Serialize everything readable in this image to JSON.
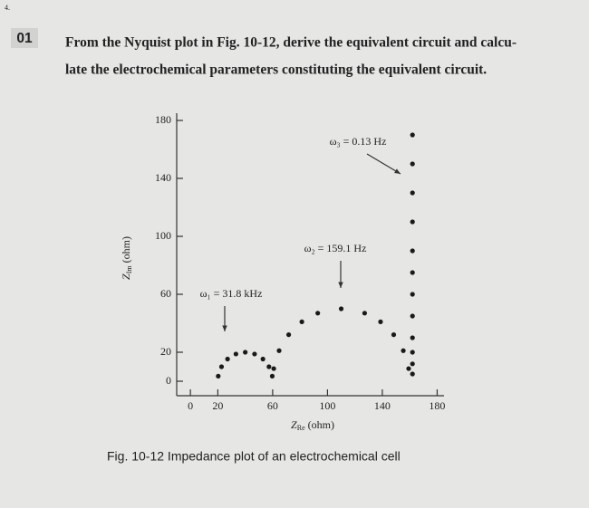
{
  "page_mark": "4.",
  "problem": {
    "number": "01",
    "lines": [
      "From the Nyquist plot in Fig. 10-12, derive the equivalent circuit and calcu-",
      "late the electrochemical parameters constituting the equivalent circuit."
    ]
  },
  "chart_data": {
    "type": "scatter",
    "x_label": {
      "symbol": "Z",
      "subscript": "Re",
      "unit": "(ohm)"
    },
    "y_label": {
      "symbol": "Z",
      "subscript": "Im",
      "unit": "(ohm)"
    },
    "xlim": [
      -10,
      185
    ],
    "ylim": [
      -10,
      185
    ],
    "xticks": [
      0,
      20,
      60,
      100,
      140,
      180
    ],
    "yticks": [
      0,
      20,
      60,
      100,
      140,
      180
    ],
    "color": "#1a1a1a",
    "x": [
      20.3,
      22.7,
      27.1,
      33.2,
      40,
      46.8,
      52.9,
      57.3,
      59.7,
      60.8,
      64.7,
      71.7,
      81.3,
      92.9,
      110,
      127.1,
      138.7,
      148.3,
      155.3,
      159.2,
      162,
      162,
      162,
      162,
      162,
      162,
      162,
      162,
      162,
      162,
      162,
      162
    ],
    "y": [
      3.5,
      10,
      15.3,
      18.8,
      20,
      18.8,
      15.3,
      10,
      3.5,
      8.7,
      21.1,
      32.1,
      41,
      47,
      50,
      47,
      41,
      32.1,
      21.1,
      8.7,
      5,
      12,
      20,
      30,
      45,
      60,
      75,
      90,
      110,
      130,
      150,
      170
    ],
    "annotations": [
      "ω₁ = 31.8 kHz",
      "ω₂ = 159.1 Hz",
      "ω₃ = 0.13 Hz"
    ]
  },
  "caption": "Fig. 10-12  Impedance plot of an electrochemical cell"
}
